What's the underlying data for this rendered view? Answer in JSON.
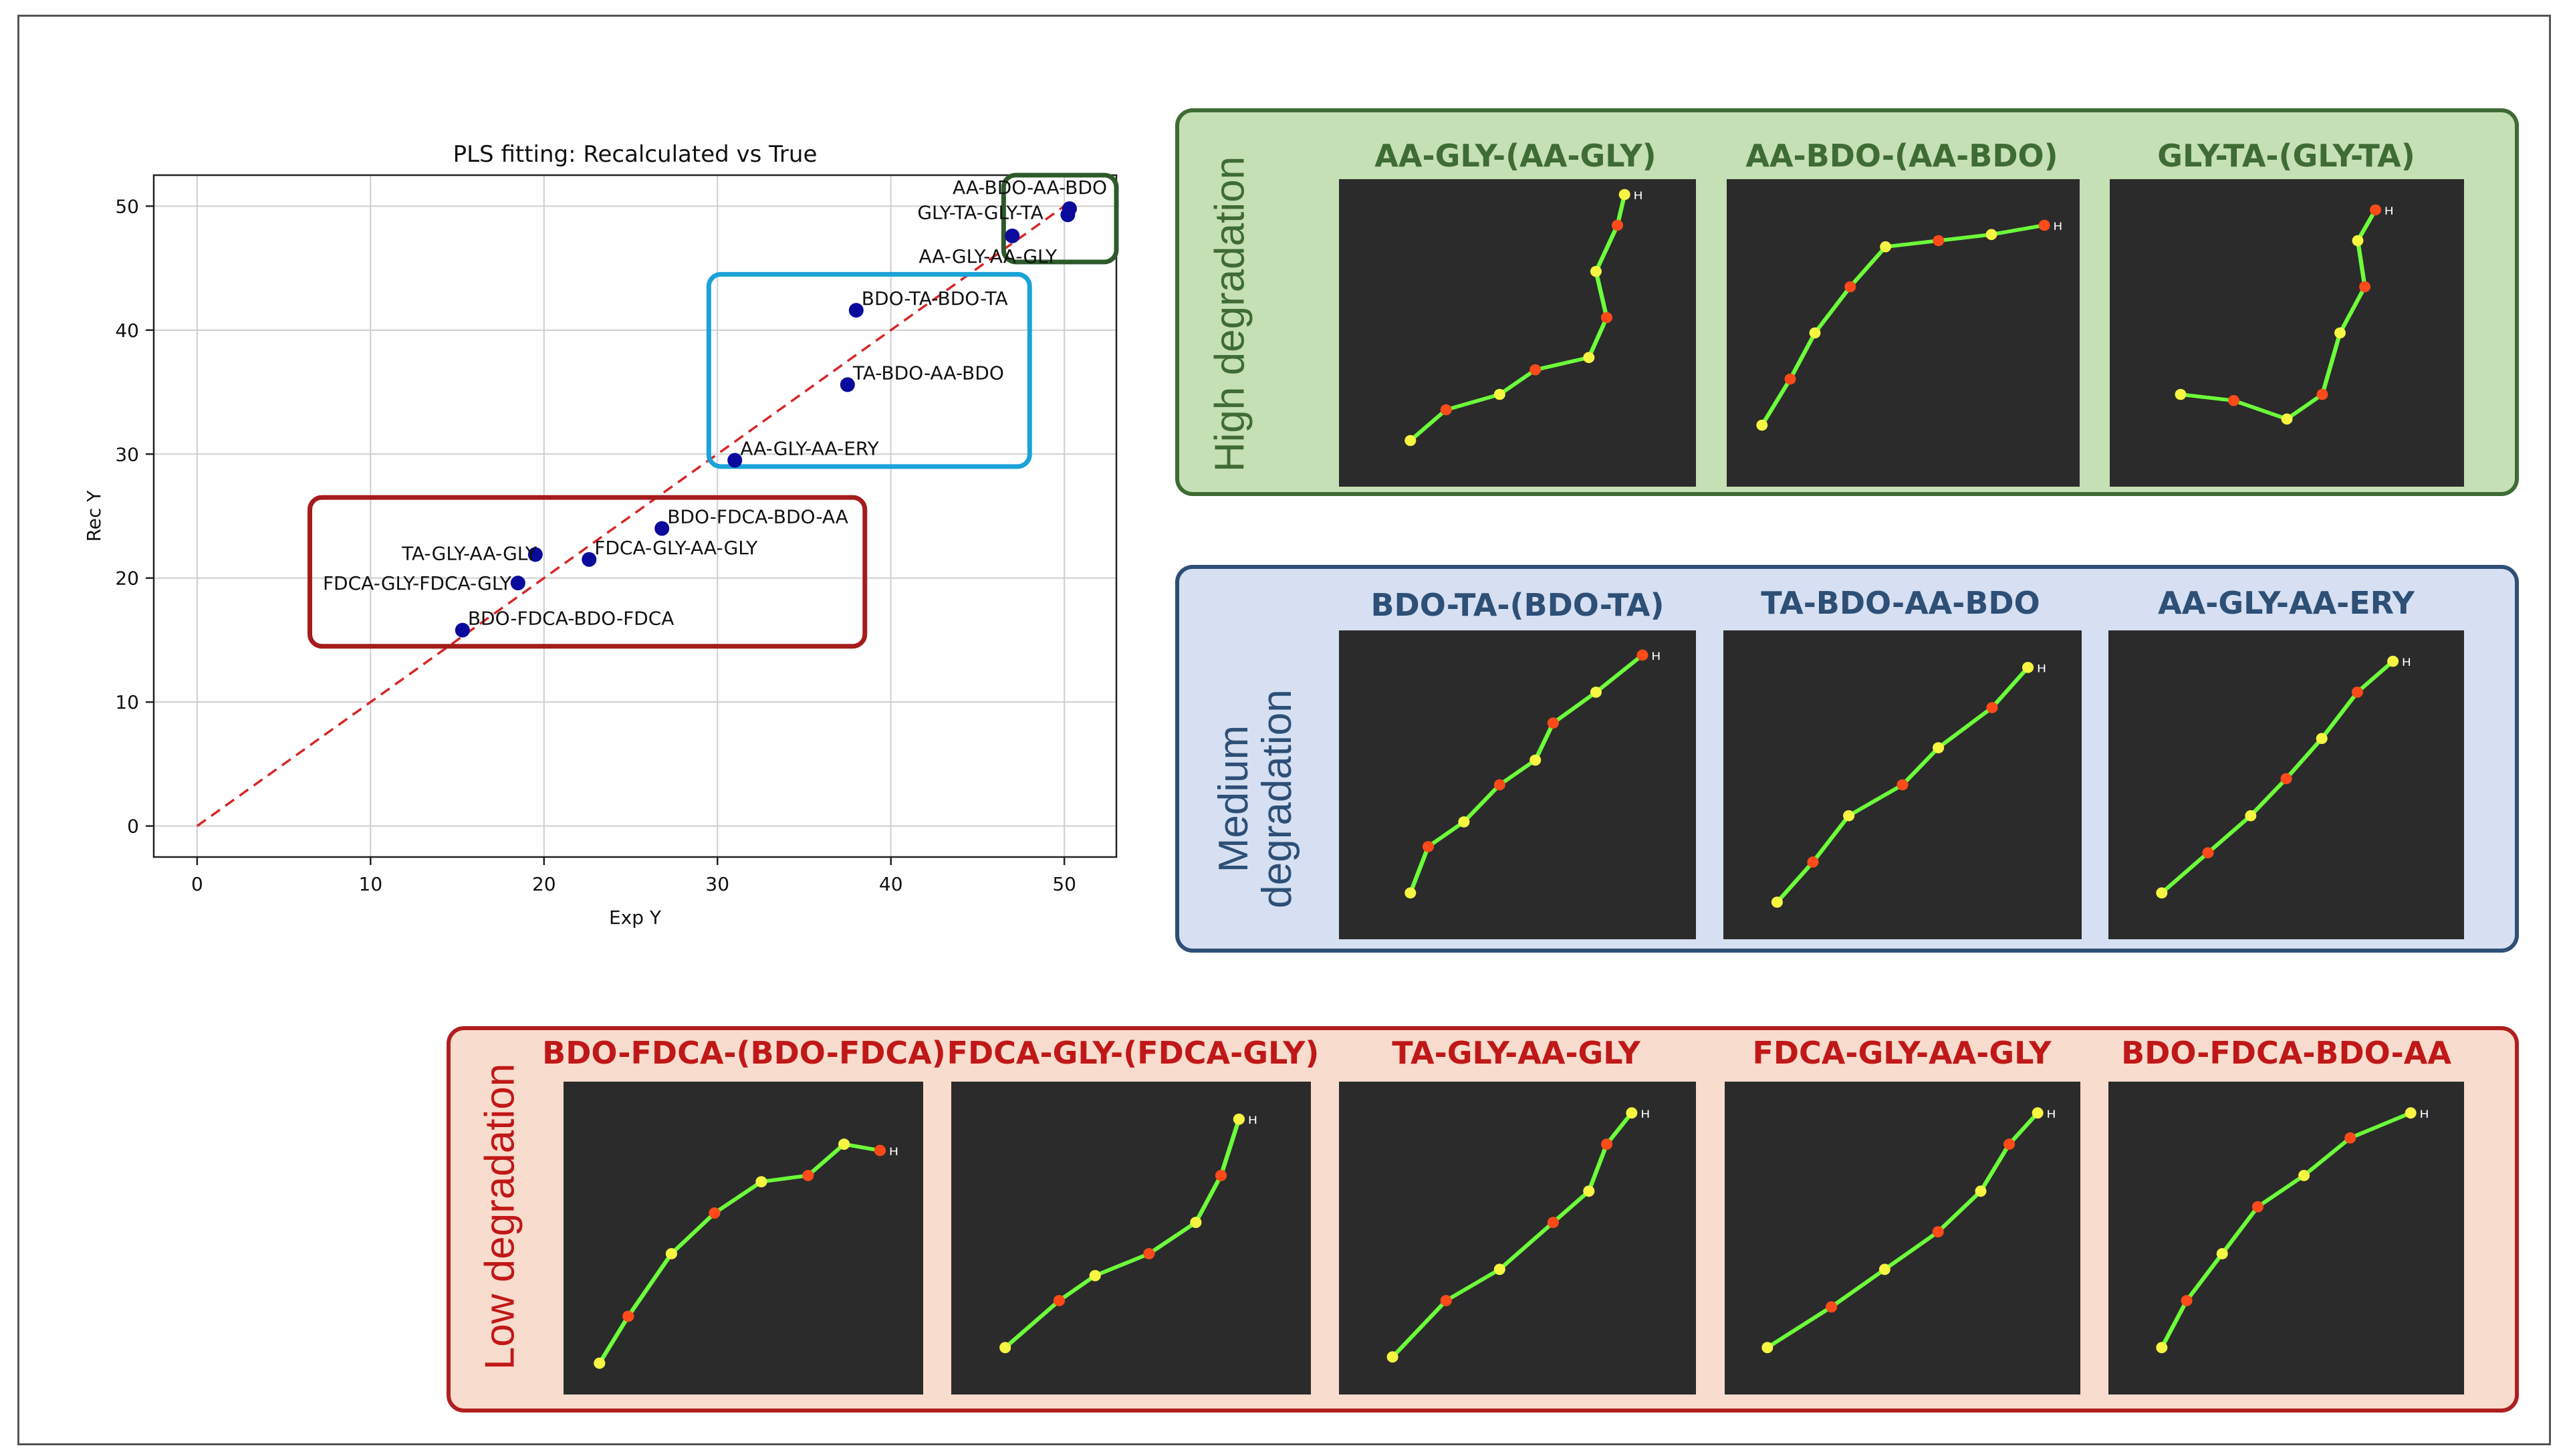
{
  "chart_data": {
    "type": "scatter",
    "title": "PLS fitting: Recalculated vs True",
    "xlabel": "Exp Y",
    "ylabel": "Rec Y",
    "xlim": [
      -2.5,
      53
    ],
    "ylim": [
      -2.5,
      52.5
    ],
    "xticks": [
      0,
      10,
      20,
      30,
      40,
      50
    ],
    "yticks": [
      0,
      10,
      20,
      30,
      40,
      50
    ],
    "grid": true,
    "reference_line": {
      "from": [
        0,
        0
      ],
      "to": [
        50,
        50
      ],
      "style": "dashed",
      "color": "#d62728"
    },
    "points": [
      {
        "label": "AA-BDO-AA-BDO",
        "x": 50.3,
        "y": 49.8
      },
      {
        "label": "GLY-TA-GLY-TA",
        "x": 50.2,
        "y": 49.3
      },
      {
        "label": "AA-GLY-AA-GLY",
        "x": 47.0,
        "y": 47.6
      },
      {
        "label": "BDO-TA-BDO-TA",
        "x": 38.0,
        "y": 41.6
      },
      {
        "label": "TA-BDO-AA-BDO",
        "x": 37.5,
        "y": 35.6
      },
      {
        "label": "AA-GLY-AA-ERY",
        "x": 31.0,
        "y": 29.5
      },
      {
        "label": "BDO-FDCA-BDO-AA",
        "x": 26.8,
        "y": 24.0
      },
      {
        "label": "FDCA-GLY-AA-GLY",
        "x": 22.6,
        "y": 21.5
      },
      {
        "label": "TA-GLY-AA-GLY",
        "x": 19.5,
        "y": 21.9
      },
      {
        "label": "FDCA-GLY-FDCA-GLY",
        "x": 18.5,
        "y": 19.6
      },
      {
        "label": "BDO-FDCA-BDO-FDCA",
        "x": 15.3,
        "y": 15.8
      }
    ],
    "highlight_boxes": [
      {
        "group": "high",
        "color": "#2e5a2a",
        "x_range": [
          46.5,
          53
        ],
        "y_range": [
          45.5,
          52.5
        ]
      },
      {
        "group": "medium",
        "color": "#1aa3d9",
        "x_range": [
          29.5,
          48
        ],
        "y_range": [
          29,
          44.5
        ]
      },
      {
        "group": "low",
        "color": "#a51c1c",
        "x_range": [
          6.5,
          38.5
        ],
        "y_range": [
          14.5,
          26.5
        ]
      }
    ],
    "point_color": "#0a0a9c"
  },
  "colors": {
    "high_border": "#3f6b34",
    "high_bg": "#c5e0b4",
    "high_text": "#3f6b34",
    "medium_border": "#2e4f76",
    "medium_bg": "#d6e0f2",
    "medium_text": "#2e4f76",
    "low_border": "#b01f1f",
    "low_bg": "#f8dccd",
    "low_text": "#c01818"
  },
  "panels": {
    "high": {
      "title": "High degradation",
      "molecules": [
        "AA-GLY-(AA-GLY)",
        "AA-BDO-(AA-BDO)",
        "GLY-TA-(GLY-TA)"
      ]
    },
    "medium": {
      "title_line1": "Medium",
      "title_line2": "degradation",
      "molecules": [
        "BDO-TA-(BDO-TA)",
        "TA-BDO-AA-BDO",
        "AA-GLY-AA-ERY"
      ]
    },
    "low": {
      "title": "Low degradation",
      "molecules": [
        "BDO-FDCA-(BDO-FDCA)",
        "FDCA-GLY-(FDCA-GLY)",
        "TA-GLY-AA-GLY",
        "FDCA-GLY-AA-GLY",
        "BDO-FDCA-BDO-AA"
      ]
    }
  },
  "atom_label": "H"
}
